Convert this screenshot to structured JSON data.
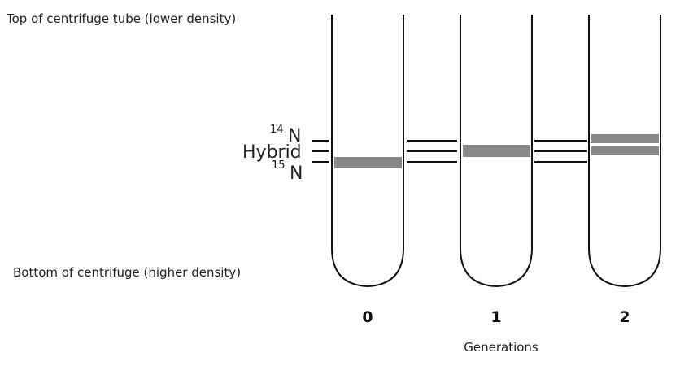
{
  "labels": {
    "top": "Top of centrifuge tube (lower density)",
    "bottom": "Bottom of centrifuge (higher density)",
    "n14_sup": "14",
    "n14_sym": "N",
    "hybrid": "Hybrid",
    "n15_sup": "15",
    "n15_sym": "N",
    "axis_caption": "Generations"
  },
  "tubes": [
    {
      "generation": "0",
      "bands": [
        "15N"
      ]
    },
    {
      "generation": "1",
      "bands": [
        "hybrid"
      ]
    },
    {
      "generation": "2",
      "bands": [
        "14N",
        "hybrid"
      ]
    }
  ],
  "colors": {
    "band": "#888888",
    "line": "#111111"
  }
}
